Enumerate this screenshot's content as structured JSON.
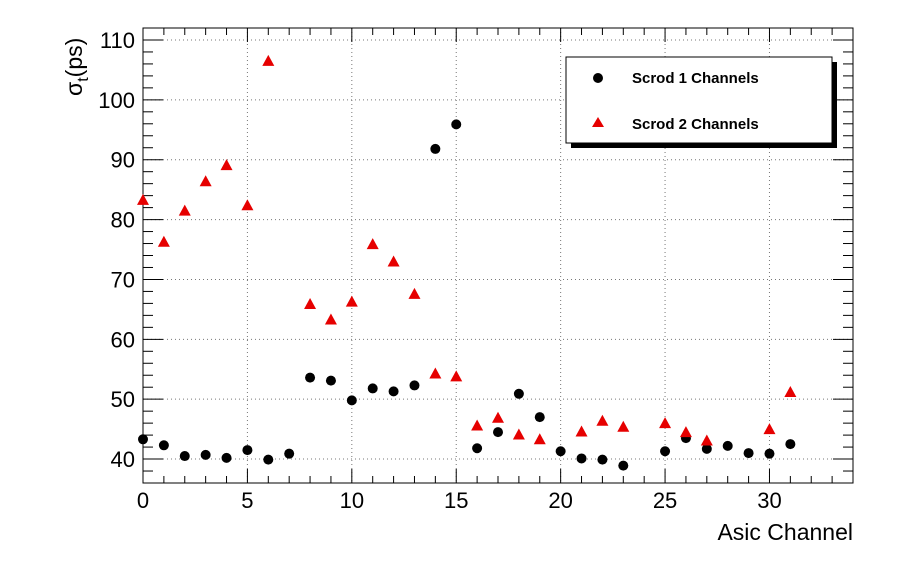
{
  "chart_data": {
    "type": "scatter",
    "xlabel": "Asic Channel",
    "ylabel_main": "σ",
    "ylabel_sub": "t",
    "ylabel_unit": "(ps)",
    "xlim": [
      0,
      34
    ],
    "ylim": [
      36,
      112
    ],
    "xticks": [
      0,
      5,
      10,
      15,
      20,
      25,
      30
    ],
    "yticks": [
      40,
      50,
      60,
      70,
      80,
      90,
      100,
      110
    ],
    "grid": true,
    "legend_position": "top-right",
    "series": [
      {
        "name": "Scrod 1 Channels",
        "marker": "circle",
        "color": "#000000",
        "points": [
          [
            0,
            43.3
          ],
          [
            1,
            42.3
          ],
          [
            2,
            40.5
          ],
          [
            3,
            40.7
          ],
          [
            4,
            40.2
          ],
          [
            5,
            41.5
          ],
          [
            6,
            39.9
          ],
          [
            7,
            40.9
          ],
          [
            8,
            53.6
          ],
          [
            9,
            53.1
          ],
          [
            10,
            49.8
          ],
          [
            11,
            51.8
          ],
          [
            12,
            51.3
          ],
          [
            13,
            52.3
          ],
          [
            14,
            91.8
          ],
          [
            15,
            95.9
          ],
          [
            16,
            41.8
          ],
          [
            17,
            44.5
          ],
          [
            18,
            50.9
          ],
          [
            19,
            47.0
          ],
          [
            20,
            41.3
          ],
          [
            21,
            40.1
          ],
          [
            22,
            39.9
          ],
          [
            23,
            38.9
          ],
          [
            25,
            41.3
          ],
          [
            26,
            43.5
          ],
          [
            27,
            41.7
          ],
          [
            28,
            42.2
          ],
          [
            29,
            41.0
          ],
          [
            30,
            40.9
          ],
          [
            31,
            42.5
          ]
        ]
      },
      {
        "name": "Scrod 2 Channels",
        "marker": "triangle",
        "color": "#e60000",
        "points": [
          [
            0,
            83.3
          ],
          [
            1,
            76.3
          ],
          [
            2,
            81.5
          ],
          [
            3,
            86.4
          ],
          [
            4,
            89.1
          ],
          [
            5,
            82.4
          ],
          [
            6,
            106.5
          ],
          [
            8,
            65.9
          ],
          [
            9,
            63.3
          ],
          [
            10,
            66.3
          ],
          [
            11,
            75.9
          ],
          [
            12,
            73.0
          ],
          [
            13,
            67.6
          ],
          [
            14,
            54.3
          ],
          [
            15,
            53.8
          ],
          [
            16,
            45.6
          ],
          [
            17,
            46.9
          ],
          [
            18,
            44.1
          ],
          [
            19,
            43.3
          ],
          [
            21,
            44.6
          ],
          [
            22,
            46.4
          ],
          [
            23,
            45.4
          ],
          [
            25,
            46.0
          ],
          [
            26,
            44.5
          ],
          [
            27,
            43.1
          ],
          [
            30,
            45.0
          ],
          [
            31,
            51.2
          ]
        ]
      }
    ]
  }
}
